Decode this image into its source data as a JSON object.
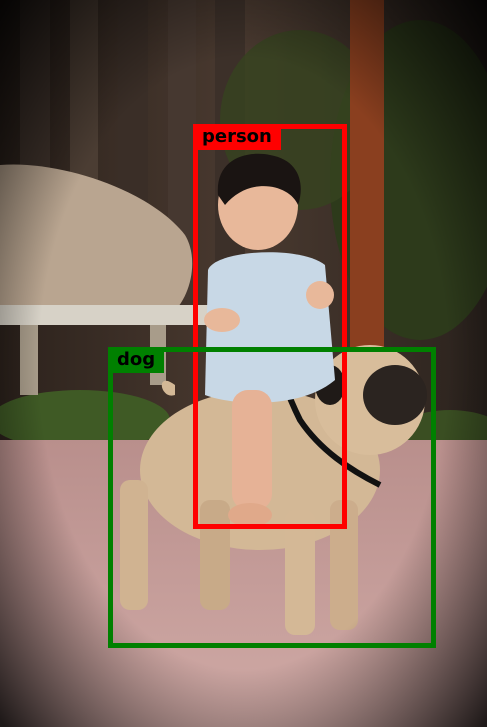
{
  "scene": {
    "description_note": "",
    "colors": {
      "frame": "#000000",
      "fence": "#3a2a22",
      "pavement": "#c49c98",
      "rock": "#b9a590",
      "foliage": "#3b4a22",
      "pug_body": "#d3b896",
      "pug_face": "#2b2420",
      "child_shirt": "#c8d8e6"
    }
  },
  "detections": [
    {
      "label": "person",
      "color": "#ff0000"
    },
    {
      "label": "dog",
      "color": "#008000"
    }
  ]
}
